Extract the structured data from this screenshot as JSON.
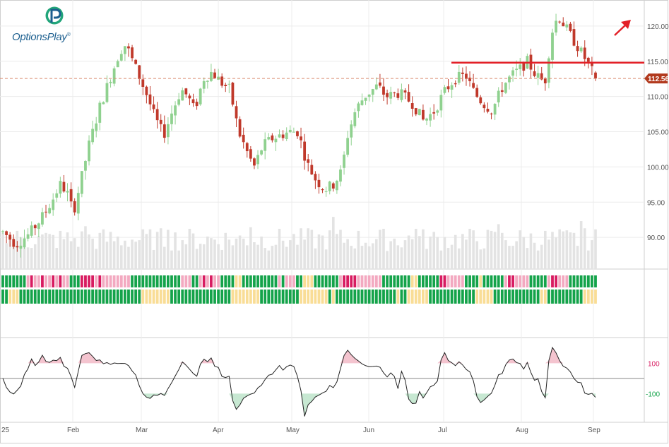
{
  "brand": {
    "name": "OptionsPlay",
    "reg": "®",
    "color": "#1c5f8f",
    "accent": "#22a57a"
  },
  "chart_data": {
    "type": "candlestick",
    "price_axis": {
      "ticks": [
        90,
        95,
        100,
        105,
        110,
        115,
        120
      ],
      "ylim": [
        85.5,
        123.5
      ]
    },
    "x_axis": {
      "labels": [
        "25",
        "Feb",
        "Mar",
        "Apr",
        "May",
        "Jun",
        "Jul",
        "Aug",
        "Sep"
      ]
    },
    "last_price": {
      "value": 112.56,
      "label": "112.56"
    },
    "resistance": {
      "value": 114.8,
      "color": "#e32027"
    },
    "trend_arrow": {
      "direction": "up",
      "color": "#e32027"
    },
    "oscillator": {
      "ticks": [
        "100",
        "-100"
      ],
      "ylim": [
        -280,
        260
      ]
    },
    "colors": {
      "up": "#8fd18f",
      "down": "#c0392b",
      "volume": "#e3e3e3",
      "grid": "#ececec",
      "price_line": "#d98b6f",
      "osc_pos_fill": "#f4c4cf",
      "osc_neg_fill": "#c7e8d2",
      "band_green": "#14a34a",
      "band_yellow": "#f9dd96",
      "band_pink": "#f3a9c0",
      "band_magenta": "#d81b60"
    },
    "candles": [],
    "volumes": [],
    "oscillator_values": [],
    "band_top": [],
    "band_bottom": []
  }
}
